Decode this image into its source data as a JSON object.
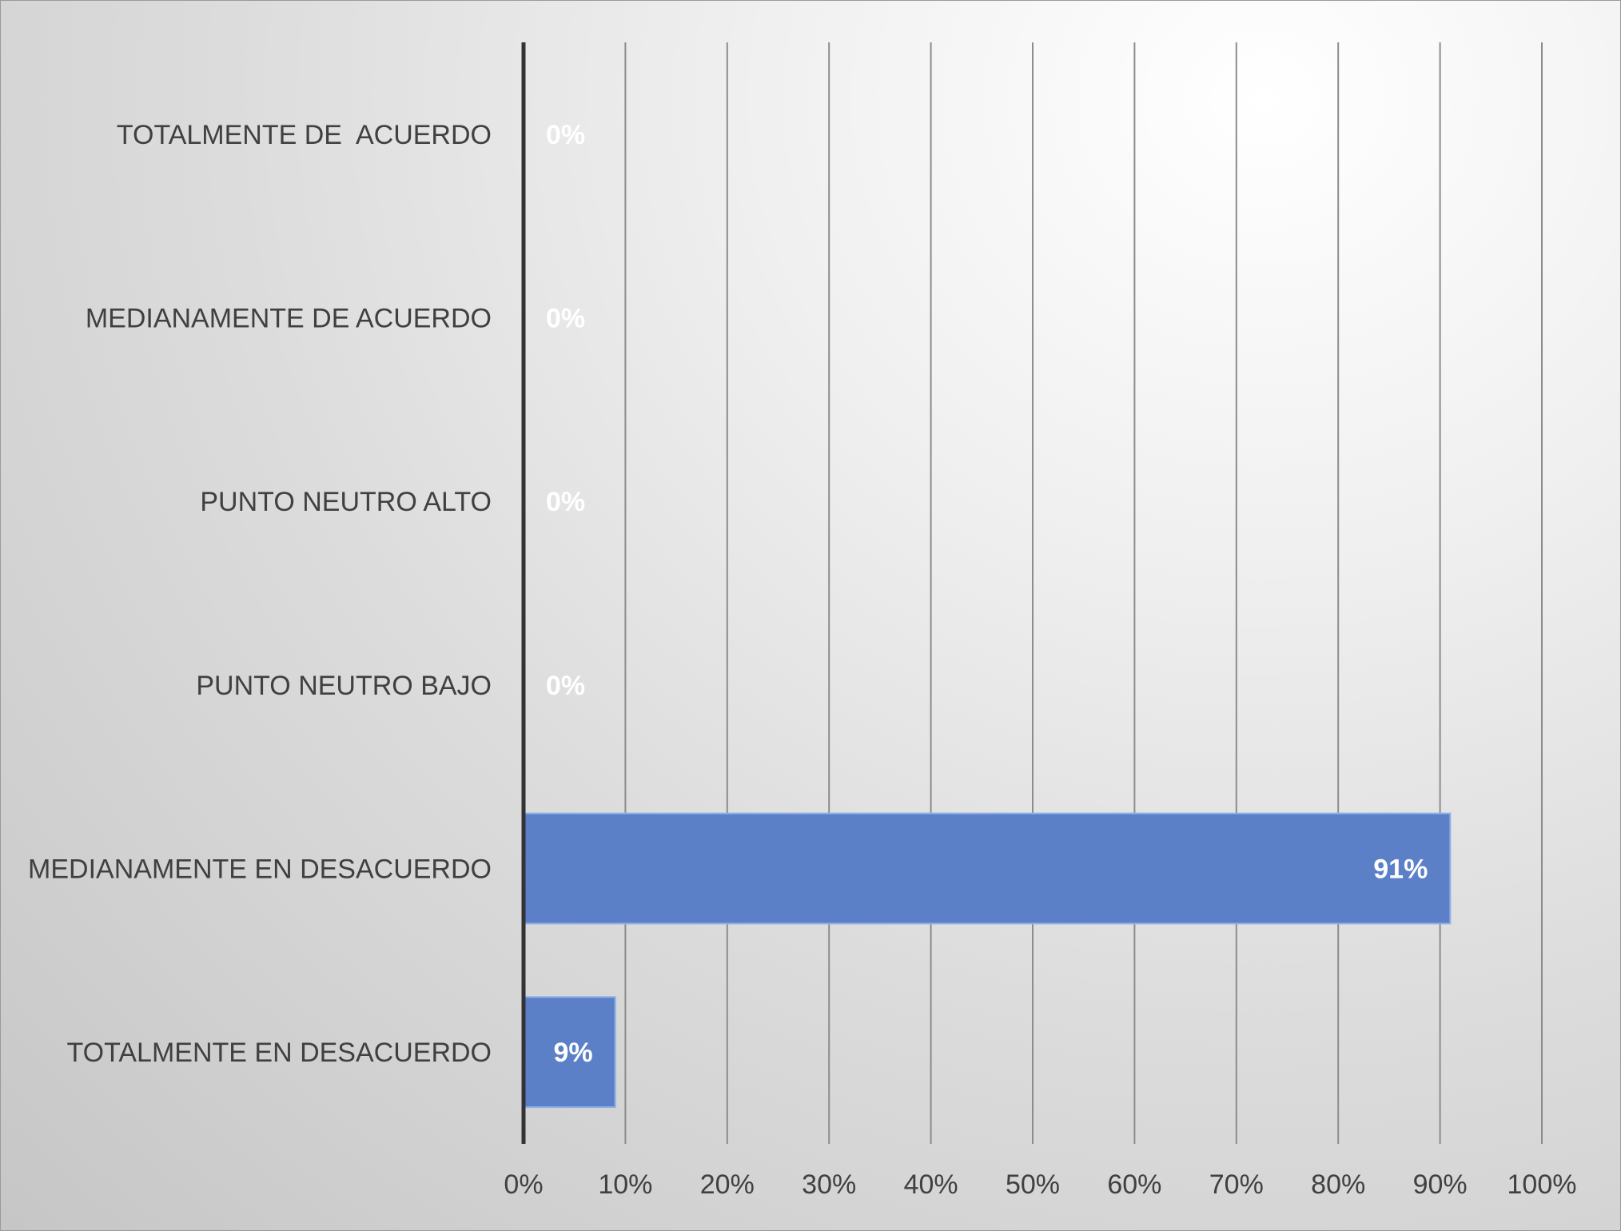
{
  "chart_data": {
    "type": "bar",
    "orientation": "horizontal",
    "title": "",
    "xlabel": "",
    "ylabel": "",
    "categories": [
      "TOTALMENTE DE  ACUERDO",
      "MEDIANAMENTE DE ACUERDO",
      "PUNTO NEUTRO ALTO",
      "PUNTO NEUTRO BAJO",
      "MEDIANAMENTE EN DESACUERDO",
      "TOTALMENTE EN DESACUERDO"
    ],
    "values": [
      0,
      0,
      0,
      0,
      0.91,
      0.09
    ],
    "data_labels": [
      "0%",
      "0%",
      "0%",
      "0%",
      "91%",
      "9%"
    ],
    "xlim": [
      0,
      1
    ],
    "x_ticks": [
      0,
      0.1,
      0.2,
      0.3,
      0.4,
      0.5,
      0.6,
      0.7,
      0.8,
      0.9,
      1.0
    ],
    "x_tick_labels": [
      "0%",
      "10%",
      "20%",
      "30%",
      "40%",
      "50%",
      "60%",
      "70%",
      "80%",
      "90%",
      "100%"
    ],
    "grid": true,
    "legend": "none",
    "colors": {
      "bar": "#5b80c8",
      "bar_border": "#8fb0e8",
      "gridline": "#8c8c8c",
      "axis": "#333333",
      "text": "#404040",
      "data_label": "#ffffff"
    }
  }
}
